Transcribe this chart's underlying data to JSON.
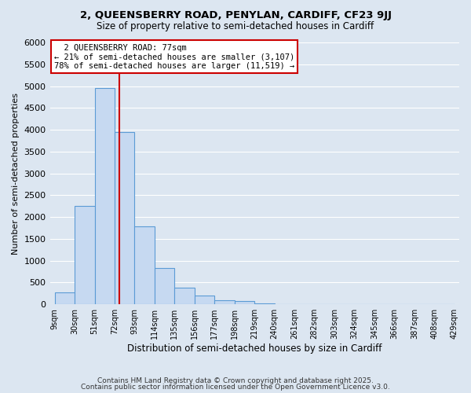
{
  "title1": "2, QUEENSBERRY ROAD, PENYLAN, CARDIFF, CF23 9JJ",
  "title2": "Size of property relative to semi-detached houses in Cardiff",
  "xlabel": "Distribution of semi-detached houses by size in Cardiff",
  "ylabel": "Number of semi-detached properties",
  "bin_edges": [
    9,
    30,
    51,
    72,
    93,
    114,
    135,
    156,
    177,
    198,
    219,
    240,
    261,
    282,
    303,
    324,
    345,
    366,
    387,
    408,
    429
  ],
  "bin_labels": [
    "9sqm",
    "30sqm",
    "51sqm",
    "72sqm",
    "93sqm",
    "114sqm",
    "135sqm",
    "156sqm",
    "177sqm",
    "198sqm",
    "219sqm",
    "240sqm",
    "261sqm",
    "282sqm",
    "303sqm",
    "324sqm",
    "345sqm",
    "366sqm",
    "387sqm",
    "408sqm",
    "429sqm"
  ],
  "bar_heights": [
    270,
    2250,
    4950,
    3950,
    1790,
    840,
    390,
    210,
    90,
    80,
    30,
    0,
    0,
    0,
    0,
    0,
    0,
    0,
    0,
    0
  ],
  "bar_color": "#c6d9f1",
  "bar_edge_color": "#5b9bd5",
  "property_label": "2 QUEENSBERRY ROAD: 77sqm",
  "smaller_pct": "21%",
  "smaller_n": "3,107",
  "larger_pct": "78%",
  "larger_n": "11,519",
  "annotation_line_color": "#cc0000",
  "annotation_box_edge_color": "#cc0000",
  "ylim": [
    0,
    6000
  ],
  "yticks": [
    0,
    500,
    1000,
    1500,
    2000,
    2500,
    3000,
    3500,
    4000,
    4500,
    5000,
    5500,
    6000
  ],
  "footer1": "Contains HM Land Registry data © Crown copyright and database right 2025.",
  "footer2": "Contains public sector information licensed under the Open Government Licence v3.0.",
  "bg_color": "#dce6f1",
  "plot_bg_color": "#dce6f1"
}
